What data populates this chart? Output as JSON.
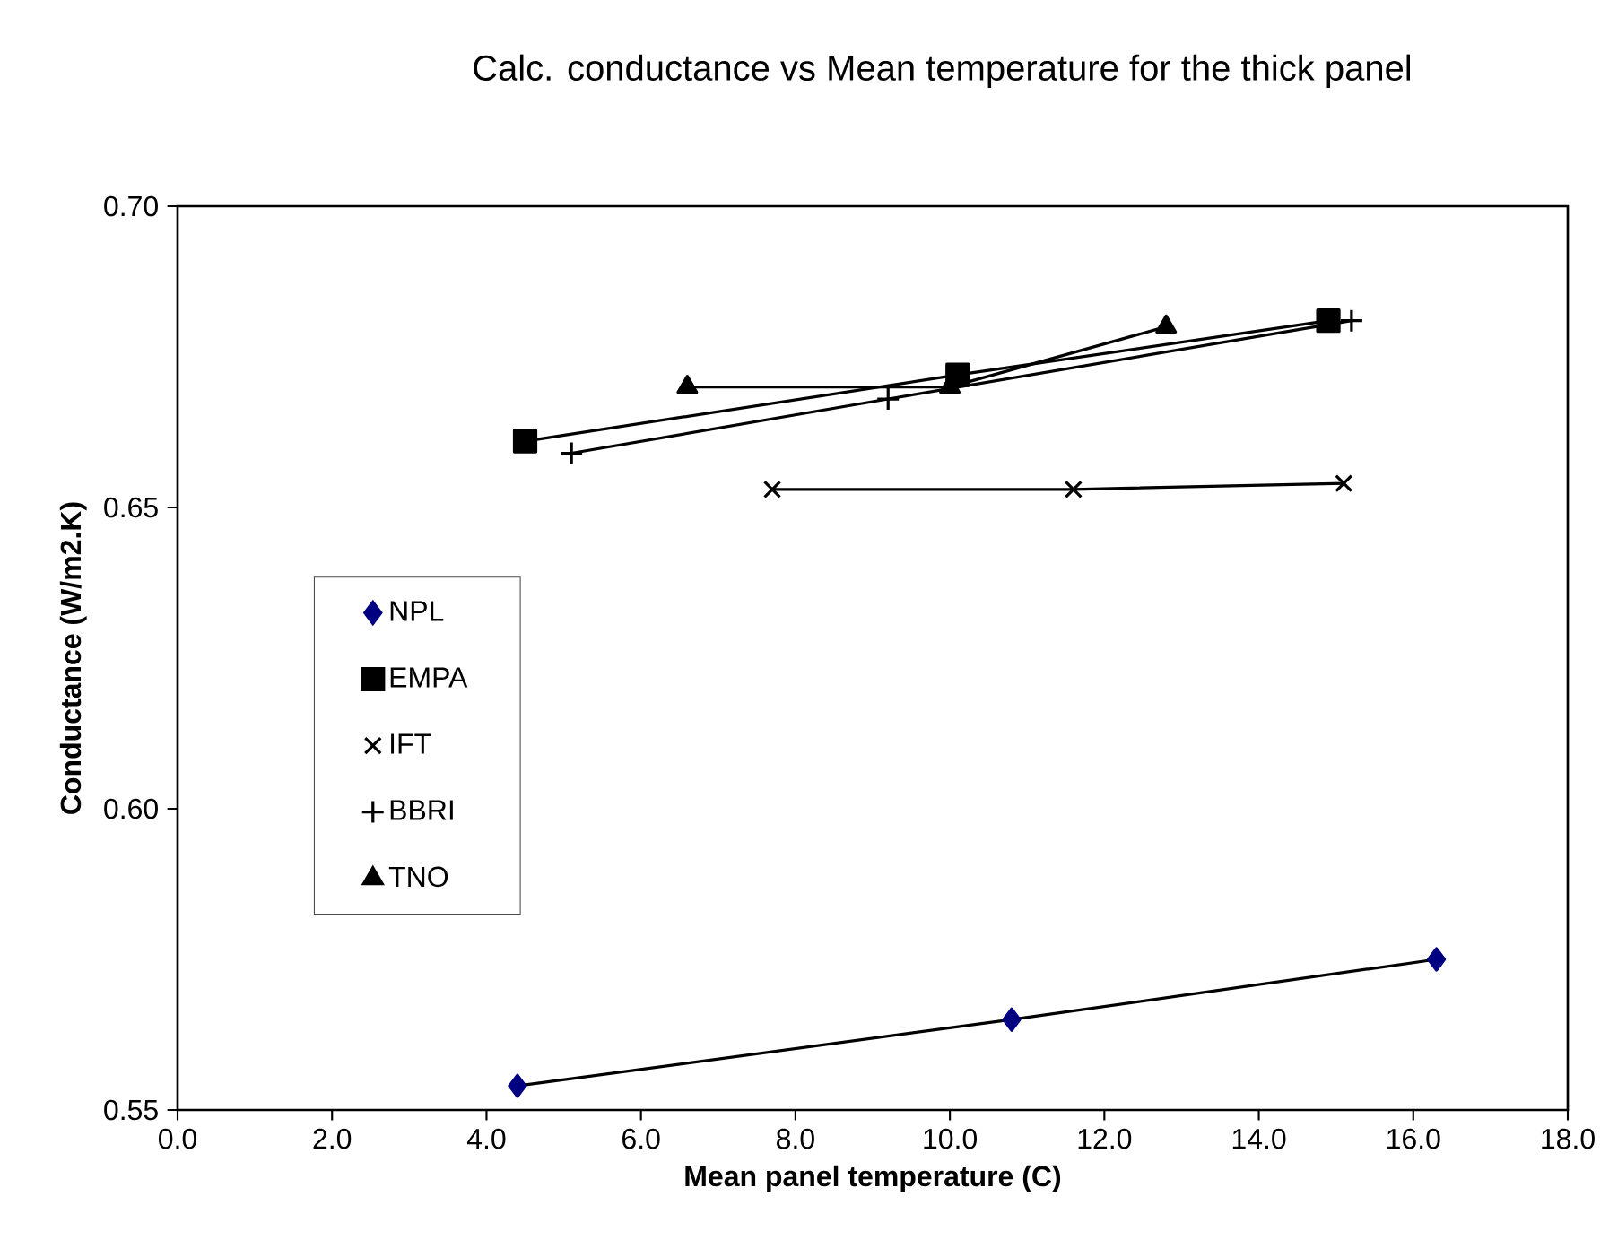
{
  "chart_data": {
    "type": "line",
    "title": "Calc. conductance vs Mean  temperature for the thick panel",
    "xlabel": "Mean panel temperature (C)",
    "ylabel": "Conductance (W/m2.K)",
    "xlim": [
      0,
      18
    ],
    "ylim": [
      0.55,
      0.7
    ],
    "xticks": [
      {
        "value": 0,
        "label": "0.0"
      },
      {
        "value": 2,
        "label": "2.0"
      },
      {
        "value": 4,
        "label": "4.0"
      },
      {
        "value": 6,
        "label": "6.0"
      },
      {
        "value": 8,
        "label": "8.0"
      },
      {
        "value": 10,
        "label": "10.0"
      },
      {
        "value": 12,
        "label": "12.0"
      },
      {
        "value": 14,
        "label": "14.0"
      },
      {
        "value": 16,
        "label": "16.0"
      },
      {
        "value": 18,
        "label": "18.0"
      }
    ],
    "yticks": [
      {
        "value": 0.55,
        "label": "0.55"
      },
      {
        "value": 0.6,
        "label": "0.60"
      },
      {
        "value": 0.65,
        "label": "0.65"
      },
      {
        "value": 0.7,
        "label": "0.70"
      }
    ],
    "grid": false,
    "legend": "left",
    "line_style": "solid",
    "series": [
      {
        "name": "NPL",
        "color": "#000080",
        "marker": "diamond",
        "x": [
          4.4,
          10.8,
          16.3
        ],
        "values": [
          0.554,
          0.565,
          0.575
        ]
      },
      {
        "name": "EMPA",
        "color": "#000000",
        "marker": "square",
        "x": [
          4.5,
          10.1,
          14.9
        ],
        "values": [
          0.661,
          0.672,
          0.681
        ]
      },
      {
        "name": "IFT",
        "color": "#000000",
        "marker": "cross",
        "x": [
          7.7,
          11.6,
          15.1
        ],
        "values": [
          0.653,
          0.653,
          0.654
        ]
      },
      {
        "name": "BBRI",
        "color": "#000000",
        "marker": "plus",
        "x": [
          5.1,
          9.2,
          15.2
        ],
        "values": [
          0.659,
          0.668,
          0.681
        ]
      },
      {
        "name": "TNO",
        "color": "#000000",
        "marker": "triangle",
        "x": [
          6.6,
          10.0,
          12.8
        ],
        "values": [
          0.67,
          0.67,
          0.68
        ]
      }
    ]
  }
}
